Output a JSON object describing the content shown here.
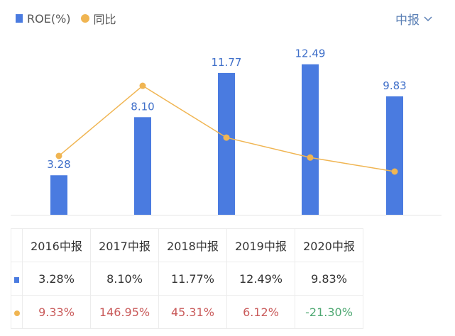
{
  "legend": {
    "roe": "ROE(%)",
    "yoy": "同比"
  },
  "period_selector": {
    "label": "中报"
  },
  "colors": {
    "bar": "#4a7be0",
    "line": "#f0b552",
    "positive": "#c95a5a",
    "negative": "#4ea872"
  },
  "chart_data": {
    "type": "bar+line",
    "categories": [
      "2016中报",
      "2017中报",
      "2018中报",
      "2019中报",
      "2020中报"
    ],
    "series": [
      {
        "name": "ROE(%)",
        "type": "bar",
        "values": [
          3.28,
          8.1,
          11.77,
          12.49,
          9.83
        ],
        "labels": [
          "3.28",
          "8.10",
          "11.77",
          "12.49",
          "9.83"
        ]
      },
      {
        "name": "同比",
        "type": "line",
        "values": [
          9.33,
          146.95,
          45.31,
          6.12,
          -21.3
        ]
      }
    ]
  },
  "table": {
    "headers": [
      "2016中报",
      "2017中报",
      "2018中报",
      "2019中报",
      "2020中报"
    ],
    "roe": [
      "3.28%",
      "8.10%",
      "11.77%",
      "12.49%",
      "9.83%"
    ],
    "yoy": [
      "9.33%",
      "146.95%",
      "45.31%",
      "6.12%",
      "-21.30%"
    ]
  }
}
